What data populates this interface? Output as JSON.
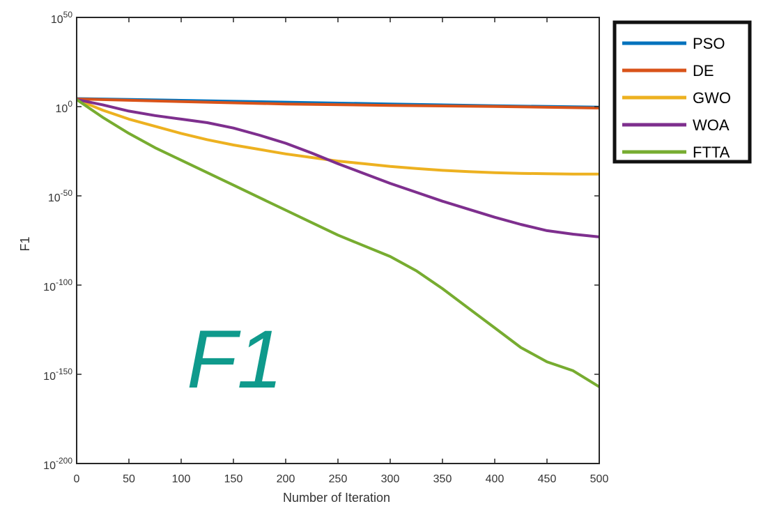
{
  "chart_data": {
    "type": "line",
    "title": "",
    "xlabel": "Number of Iteration",
    "ylabel": "F1",
    "annotation": "F1",
    "y_scale": "log",
    "xlim": [
      0,
      500
    ],
    "ylim_exponent": [
      -200,
      50
    ],
    "x_ticks": [
      "0",
      "50",
      "100",
      "150",
      "200",
      "250",
      "300",
      "350",
      "400",
      "450",
      "500"
    ],
    "y_ticks": [
      {
        "base": "10",
        "exp": "-200",
        "value": -200
      },
      {
        "base": "10",
        "exp": "-150",
        "value": -150
      },
      {
        "base": "10",
        "exp": "-100",
        "value": -100
      },
      {
        "base": "10",
        "exp": "-50",
        "value": -50
      },
      {
        "base": "10",
        "exp": "0",
        "value": 0
      },
      {
        "base": "10",
        "exp": "50",
        "value": 50
      }
    ],
    "legend_position": "outside-top-right",
    "series": [
      {
        "name": "PSO",
        "color": "#0072bd",
        "points": [
          [
            0,
            4.5
          ],
          [
            100,
            3.5
          ],
          [
            200,
            2.5
          ],
          [
            300,
            1.5
          ],
          [
            400,
            0.5
          ],
          [
            500,
            -0.3
          ]
        ]
      },
      {
        "name": "DE",
        "color": "#d95319",
        "points": [
          [
            0,
            4.3
          ],
          [
            100,
            2.8
          ],
          [
            200,
            1.5
          ],
          [
            300,
            0.7
          ],
          [
            400,
            0.1
          ],
          [
            500,
            -0.8
          ]
        ]
      },
      {
        "name": "GWO",
        "color": "#edb120",
        "points": [
          [
            0,
            4
          ],
          [
            25,
            -2
          ],
          [
            50,
            -7
          ],
          [
            75,
            -11
          ],
          [
            100,
            -15
          ],
          [
            125,
            -18.5
          ],
          [
            150,
            -21.5
          ],
          [
            175,
            -24
          ],
          [
            200,
            -26.5
          ],
          [
            225,
            -28.5
          ],
          [
            250,
            -30.5
          ],
          [
            275,
            -32
          ],
          [
            300,
            -33.5
          ],
          [
            325,
            -34.7
          ],
          [
            350,
            -35.7
          ],
          [
            375,
            -36.4
          ],
          [
            400,
            -37
          ],
          [
            425,
            -37.4
          ],
          [
            450,
            -37.6
          ],
          [
            475,
            -37.8
          ],
          [
            500,
            -37.8
          ]
        ]
      },
      {
        "name": "WOA",
        "color": "#7e2f8e",
        "points": [
          [
            0,
            4
          ],
          [
            25,
            1
          ],
          [
            50,
            -2.5
          ],
          [
            75,
            -5
          ],
          [
            100,
            -7
          ],
          [
            125,
            -9
          ],
          [
            150,
            -12
          ],
          [
            175,
            -16
          ],
          [
            200,
            -20.5
          ],
          [
            225,
            -26
          ],
          [
            250,
            -32
          ],
          [
            275,
            -37.5
          ],
          [
            300,
            -43
          ],
          [
            325,
            -48
          ],
          [
            350,
            -53
          ],
          [
            375,
            -57.5
          ],
          [
            400,
            -62
          ],
          [
            425,
            -66
          ],
          [
            450,
            -69.5
          ],
          [
            475,
            -71.5
          ],
          [
            500,
            -73
          ]
        ]
      },
      {
        "name": "FTTA",
        "color": "#77ac30",
        "points": [
          [
            0,
            4
          ],
          [
            25,
            -6
          ],
          [
            50,
            -15
          ],
          [
            75,
            -23
          ],
          [
            100,
            -30
          ],
          [
            125,
            -37
          ],
          [
            150,
            -44
          ],
          [
            175,
            -51
          ],
          [
            200,
            -58
          ],
          [
            225,
            -65
          ],
          [
            250,
            -72
          ],
          [
            275,
            -78
          ],
          [
            300,
            -84
          ],
          [
            325,
            -92
          ],
          [
            350,
            -102
          ],
          [
            375,
            -113
          ],
          [
            400,
            -124
          ],
          [
            425,
            -135
          ],
          [
            450,
            -143
          ],
          [
            475,
            -148
          ],
          [
            500,
            -157
          ]
        ]
      }
    ]
  }
}
